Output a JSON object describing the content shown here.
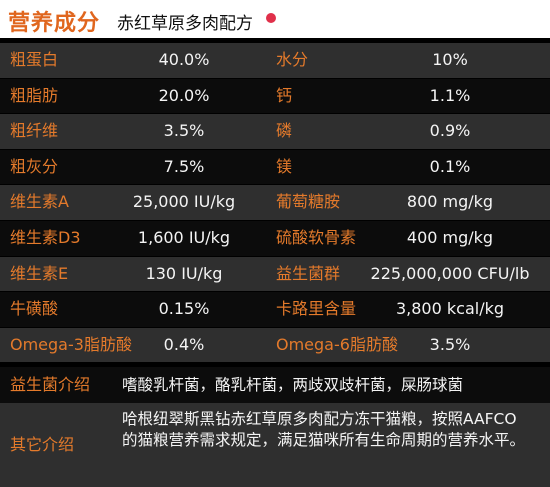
{
  "header": {
    "title": "营养成分",
    "subtitle": "赤红草原多肉配方"
  },
  "rows": [
    {
      "l1": "粗蛋白",
      "v1": "40.0%",
      "l2": "水分",
      "v2": "10%"
    },
    {
      "l1": "粗脂肪",
      "v1": "20.0%",
      "l2": "钙",
      "v2": "1.1%"
    },
    {
      "l1": "粗纤维",
      "v1": "3.5%",
      "l2": "磷",
      "v2": "0.9%"
    },
    {
      "l1": "粗灰分",
      "v1": "7.5%",
      "l2": "镁",
      "v2": "0.1%"
    },
    {
      "l1": "维生素A",
      "v1": "25,000 IU/kg",
      "l2": "葡萄糖胺",
      "v2": "800 mg/kg"
    },
    {
      "l1": "维生素D3",
      "v1": "1,600 IU/kg",
      "l2": "硫酸软骨素",
      "v2": "400 mg/kg"
    },
    {
      "l1": "维生素E",
      "v1": "130 IU/kg",
      "l2": "益生菌群",
      "v2": "225,000,000 CFU/lb"
    },
    {
      "l1": "牛磺酸",
      "v1": "0.15%",
      "l2": "卡路里含量",
      "v2": "3,800 kcal/kg"
    },
    {
      "l1": "Omega-3脂肪酸",
      "v1": "0.4%",
      "l2": "Omega-6脂肪酸",
      "v2": "3.5%"
    }
  ],
  "probiotics": {
    "label": "益生菌介绍",
    "text": "嗜酸乳杆菌，酪乳杆菌，两歧双歧杆菌，屎肠球菌"
  },
  "other": {
    "label": "其它介绍",
    "text": "哈根纽翠斯黑钻赤红草原多肉配方冻干猫粮，按照AAFCO的猫粮营养需求规定，满足猫咪所有生命周期的营养水平。"
  }
}
